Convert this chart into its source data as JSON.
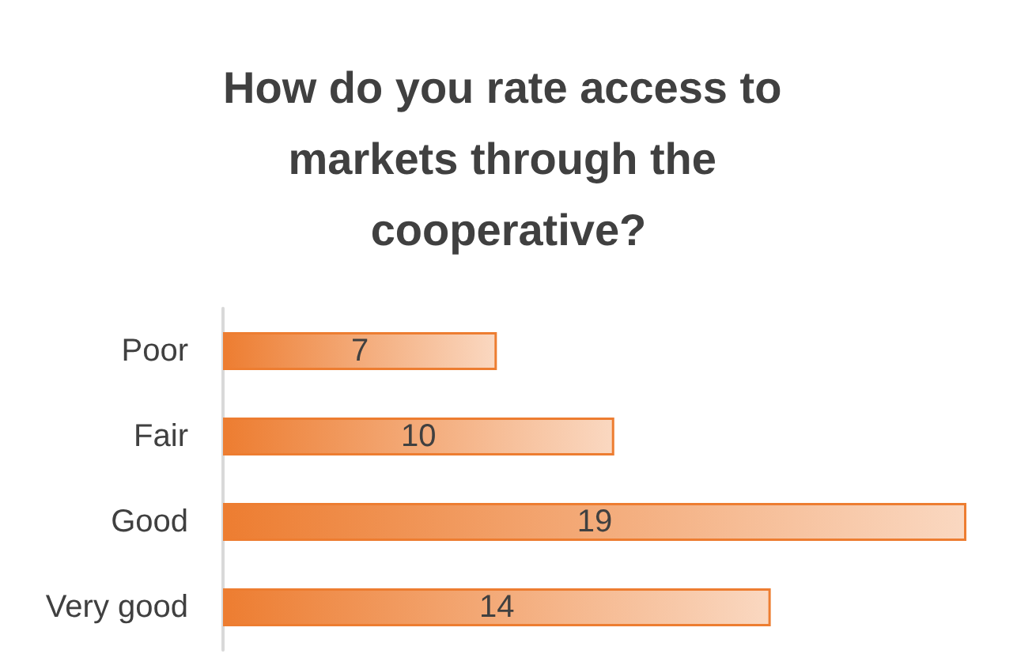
{
  "chart_data": {
    "type": "bar",
    "orientation": "horizontal",
    "title": "How do you rate access to markets through the cooperative?",
    "categories": [
      "Poor",
      "Fair",
      "Good",
      "Very good"
    ],
    "values": [
      7,
      10,
      19,
      14
    ],
    "color": "#ed7d31",
    "data_labels": true
  }
}
